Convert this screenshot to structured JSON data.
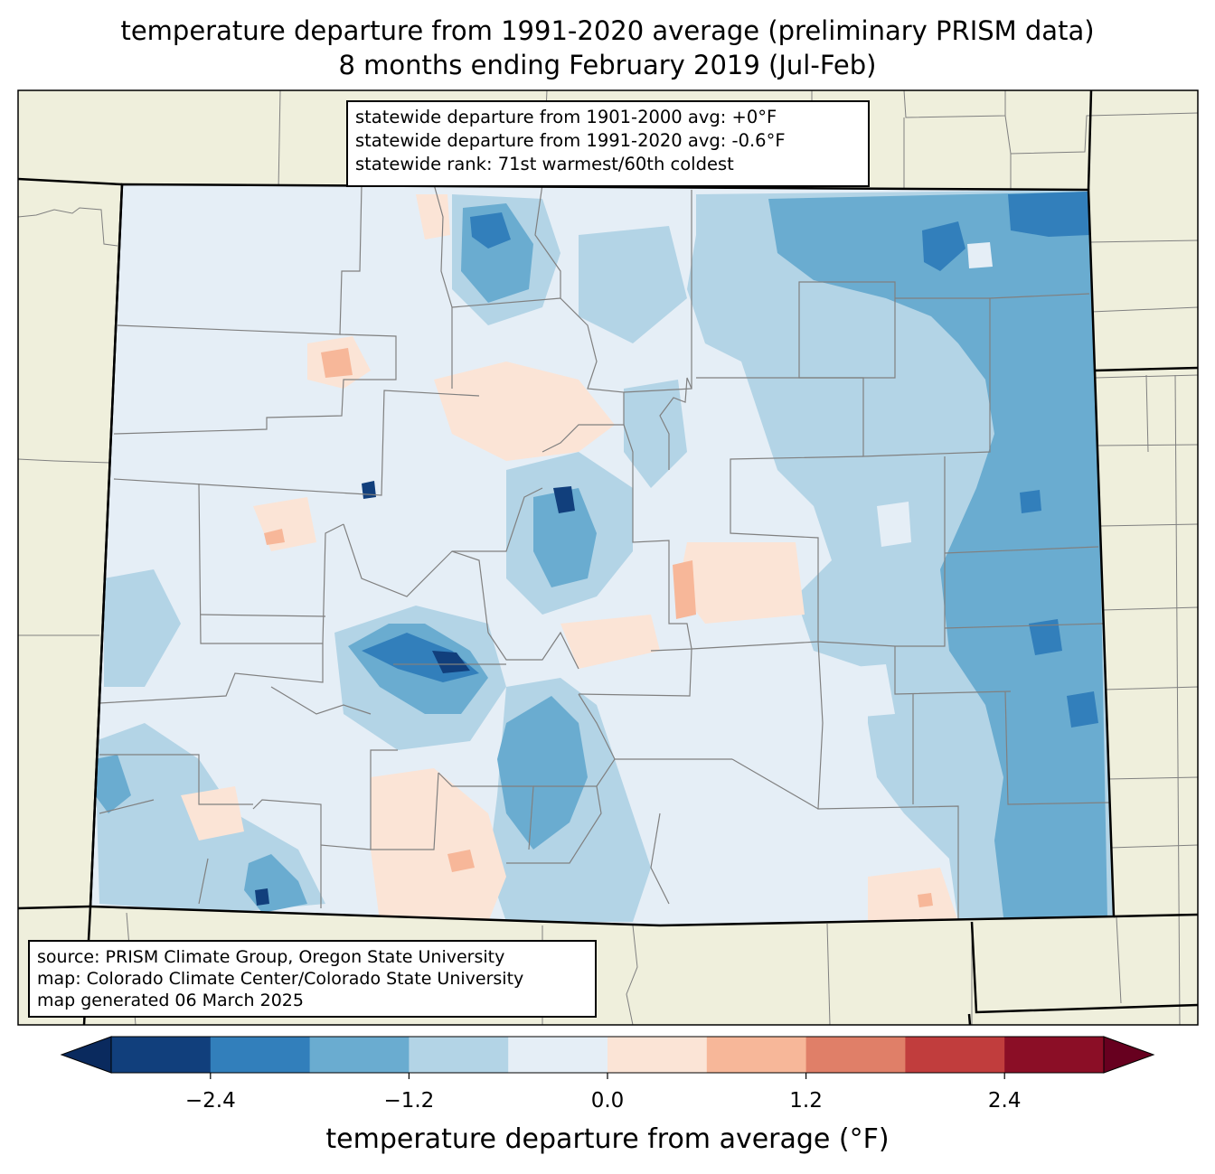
{
  "title": {
    "line1": "temperature departure from 1991-2020 average (preliminary PRISM data)",
    "line2": "8 months ending February 2019 (Jul-Feb)"
  },
  "stats": {
    "line1": "statewide departure from 1901-2000 avg: +0°F",
    "line2": "statewide departure from 1991-2020 avg: -0.6°F",
    "line3": "statewide rank: 71st warmest/60th coldest"
  },
  "credits": {
    "line1": "source: PRISM Climate Group, Oregon State University",
    "line2": "map: Colorado Climate Center/Colorado State University",
    "line3": "map generated 06 March 2025"
  },
  "colorbar": {
    "label": "temperature departure from average (°F)",
    "tick_labels": [
      "−2.4",
      "−1.2",
      "0.0",
      "1.2",
      "2.4"
    ],
    "bins": [
      -3.0,
      -2.4,
      -1.8,
      -1.2,
      -0.6,
      0.0,
      0.6,
      1.2,
      1.8,
      2.4,
      3.0
    ],
    "colors": [
      "#113f7c",
      "#327fbb",
      "#6aacd0",
      "#b3d4e6",
      "#e5eef6",
      "#fbe4d6",
      "#f7b799",
      "#e07f68",
      "#c13d3d",
      "#8b0e26"
    ],
    "under_color": "#0a2a5e",
    "over_color": "#67001f"
  },
  "map_colors": {
    "background_land": "#efefdc",
    "boundary": "#000000",
    "county_lines": "#808080"
  }
}
